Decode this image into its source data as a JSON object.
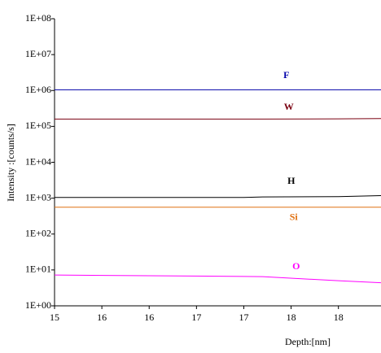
{
  "chart_data": {
    "type": "line",
    "xlabel": "Depth:[nm]",
    "ylabel": "Intensity :[counts/s]",
    "x": [
      15,
      16,
      17,
      17.2,
      18,
      18.45
    ],
    "series": [
      {
        "name": "F",
        "color": "#0000aa",
        "values": [
          1050000,
          1050000,
          1050000,
          1050000,
          1050000,
          1050000
        ]
      },
      {
        "name": "W",
        "color": "#7a0010",
        "values": [
          160000,
          160000,
          160000,
          160000,
          162000,
          165000
        ]
      },
      {
        "name": "H",
        "color": "#000000",
        "values": [
          1050,
          1050,
          1050,
          1080,
          1100,
          1180
        ]
      },
      {
        "name": "Si",
        "color": "#e07010",
        "values": [
          560,
          560,
          560,
          560,
          560,
          560
        ]
      },
      {
        "name": "O",
        "color": "#ff00ff",
        "values": [
          7.2,
          6.9,
          6.6,
          6.5,
          5.0,
          4.4
        ]
      }
    ],
    "xlim": [
      15,
      18.45
    ],
    "xticks": [
      15,
      {
        "value": 15.5,
        "label": "16"
      },
      {
        "value": 16,
        "label": "16"
      },
      {
        "value": 16.5,
        "label": "17"
      },
      {
        "value": 17,
        "label": "17"
      },
      {
        "value": 17.5,
        "label": "18"
      },
      {
        "value": 18,
        "label": "18"
      }
    ],
    "ylim": [
      1,
      100000000
    ],
    "yticks": [
      {
        "value": 1,
        "label": "1E+00"
      },
      {
        "value": 10,
        "label": "1E+01"
      },
      {
        "value": 100,
        "label": "1E+02"
      },
      {
        "value": 1000,
        "label": "1E+03"
      },
      {
        "value": 10000,
        "label": "1E+04"
      },
      {
        "value": 100000,
        "label": "1E+05"
      },
      {
        "value": 1000000,
        "label": "1E+06"
      },
      {
        "value": 10000000,
        "label": "1E+07"
      },
      {
        "value": 100000000,
        "label": "1E+08"
      }
    ],
    "yscale": "log"
  }
}
